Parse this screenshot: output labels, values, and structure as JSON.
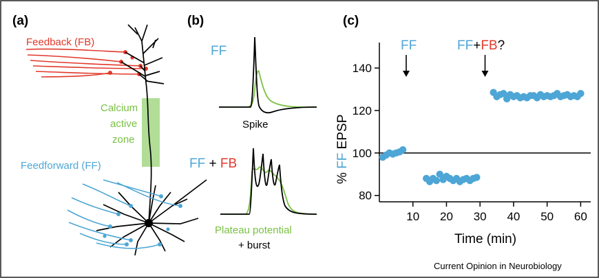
{
  "panels": {
    "a": "(a)",
    "b": "(b)",
    "c": "(c)"
  },
  "panel_a": {
    "feedback_label": "Feedback (FB)",
    "calcium_line1": "Calcium",
    "calcium_line2": "active",
    "calcium_line3": "zone",
    "feedforward_label": "Feedforward (FF)"
  },
  "panel_b": {
    "ff_label": "FF",
    "spike_label": "Spike",
    "ffb_ff": "FF",
    "ffb_plus": " + ",
    "ffb_fb": "FB",
    "plateau_line1": "Plateau potential",
    "plateau_line2": "+ burst"
  },
  "colors": {
    "ff": "#4da6d6",
    "fb": "#e0392b",
    "calcium": "#7ac143",
    "neuron": "#000000"
  },
  "chart_data": {
    "type": "scatter",
    "annotations": [
      {
        "text_ff": "FF",
        "at_x": 8
      },
      {
        "text_ff": "FF",
        "text_plus": "+",
        "text_fb": "FB",
        "text_q": "?",
        "at_x": 31.5
      }
    ],
    "ylabel_prefix": "% ",
    "ylabel_ff": "FF",
    "ylabel_suffix": " EPSP",
    "xlabel": "Time (min)",
    "xticks": [
      10,
      20,
      30,
      40,
      50,
      60
    ],
    "yticks": [
      80,
      100,
      120,
      140
    ],
    "xlim": [
      0,
      63
    ],
    "ylim": [
      77,
      152
    ],
    "reference_line": 100,
    "series": [
      {
        "x": [
          1,
          2,
          3,
          4,
          5,
          6,
          7,
          14,
          15,
          16,
          17,
          18,
          19,
          20,
          21,
          22,
          23,
          24,
          25,
          26,
          27,
          28,
          29,
          34,
          35,
          36,
          37,
          38,
          39,
          40,
          41,
          42,
          43,
          44,
          45,
          46,
          47,
          48,
          49,
          50,
          51,
          52,
          53,
          54,
          55,
          56,
          57,
          58,
          59,
          60
        ],
        "y": [
          98,
          99,
          100,
          99.5,
          100,
          100.5,
          101.5,
          88,
          86.5,
          88,
          87,
          90,
          87.5,
          89,
          88,
          87,
          88,
          86.5,
          87.5,
          88,
          87,
          88,
          88.5,
          128.5,
          126.5,
          127.5,
          128,
          125.5,
          127.5,
          126.5,
          127,
          126,
          126.5,
          126,
          127,
          127,
          126,
          127.5,
          126.5,
          127,
          126.5,
          127,
          128,
          126.5,
          127,
          127.5,
          126.5,
          127,
          126.5,
          128
        ]
      }
    ]
  },
  "credit": "Current Opinion in Neurobiology"
}
